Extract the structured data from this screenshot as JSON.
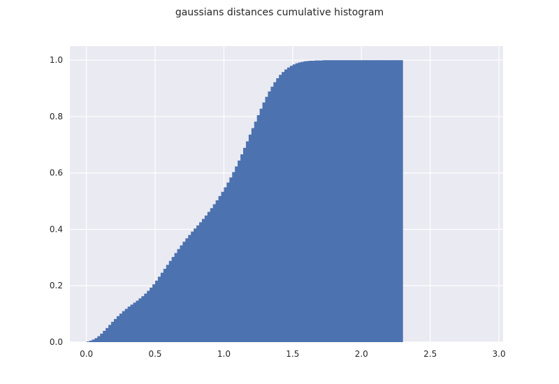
{
  "chart_data": {
    "type": "bar",
    "title": "gaussians distances cumulative histogram",
    "xlabel": "",
    "ylabel": "",
    "xlim": [
      -0.12,
      3.03
    ],
    "ylim": [
      0,
      1.05
    ],
    "grid": true,
    "legend": "none",
    "bar_color": "#4c72b0",
    "background_color": "#eaeaf2",
    "grid_color": "#ffffff",
    "xticks": [
      0.0,
      0.5,
      1.0,
      1.5,
      2.0,
      2.5,
      3.0
    ],
    "xtick_labels": [
      "0.0",
      "0.5",
      "1.0",
      "1.5",
      "2.0",
      "2.5",
      "3.0"
    ],
    "yticks": [
      0.0,
      0.2,
      0.4,
      0.6,
      0.8,
      1.0
    ],
    "ytick_labels": [
      "0.0",
      "0.2",
      "0.4",
      "0.6",
      "0.8",
      "1.0"
    ],
    "bin_start": 0.0,
    "bin_width": 0.02,
    "values": [
      0.002,
      0.005,
      0.009,
      0.014,
      0.021,
      0.03,
      0.04,
      0.05,
      0.061,
      0.072,
      0.082,
      0.092,
      0.101,
      0.11,
      0.118,
      0.126,
      0.133,
      0.14,
      0.147,
      0.155,
      0.163,
      0.172,
      0.182,
      0.193,
      0.205,
      0.218,
      0.232,
      0.246,
      0.26,
      0.274,
      0.288,
      0.302,
      0.316,
      0.33,
      0.343,
      0.356,
      0.368,
      0.38,
      0.392,
      0.403,
      0.414,
      0.425,
      0.437,
      0.449,
      0.462,
      0.475,
      0.489,
      0.503,
      0.518,
      0.533,
      0.549,
      0.566,
      0.584,
      0.603,
      0.623,
      0.644,
      0.666,
      0.689,
      0.712,
      0.736,
      0.759,
      0.782,
      0.805,
      0.828,
      0.85,
      0.87,
      0.889,
      0.906,
      0.922,
      0.936,
      0.948,
      0.958,
      0.967,
      0.974,
      0.98,
      0.985,
      0.989,
      0.992,
      0.994,
      0.996,
      0.997,
      0.998,
      0.998,
      0.999,
      0.999,
      0.999,
      1.0,
      1.0,
      1.0,
      1.0,
      1.0,
      1.0,
      1.0,
      1.0,
      1.0,
      1.0,
      1.0,
      1.0,
      1.0,
      1.0,
      1.0,
      1.0,
      1.0,
      1.0,
      1.0,
      1.0,
      1.0,
      1.0,
      1.0,
      1.0,
      1.0,
      1.0,
      1.0,
      1.0,
      1.0
    ]
  }
}
